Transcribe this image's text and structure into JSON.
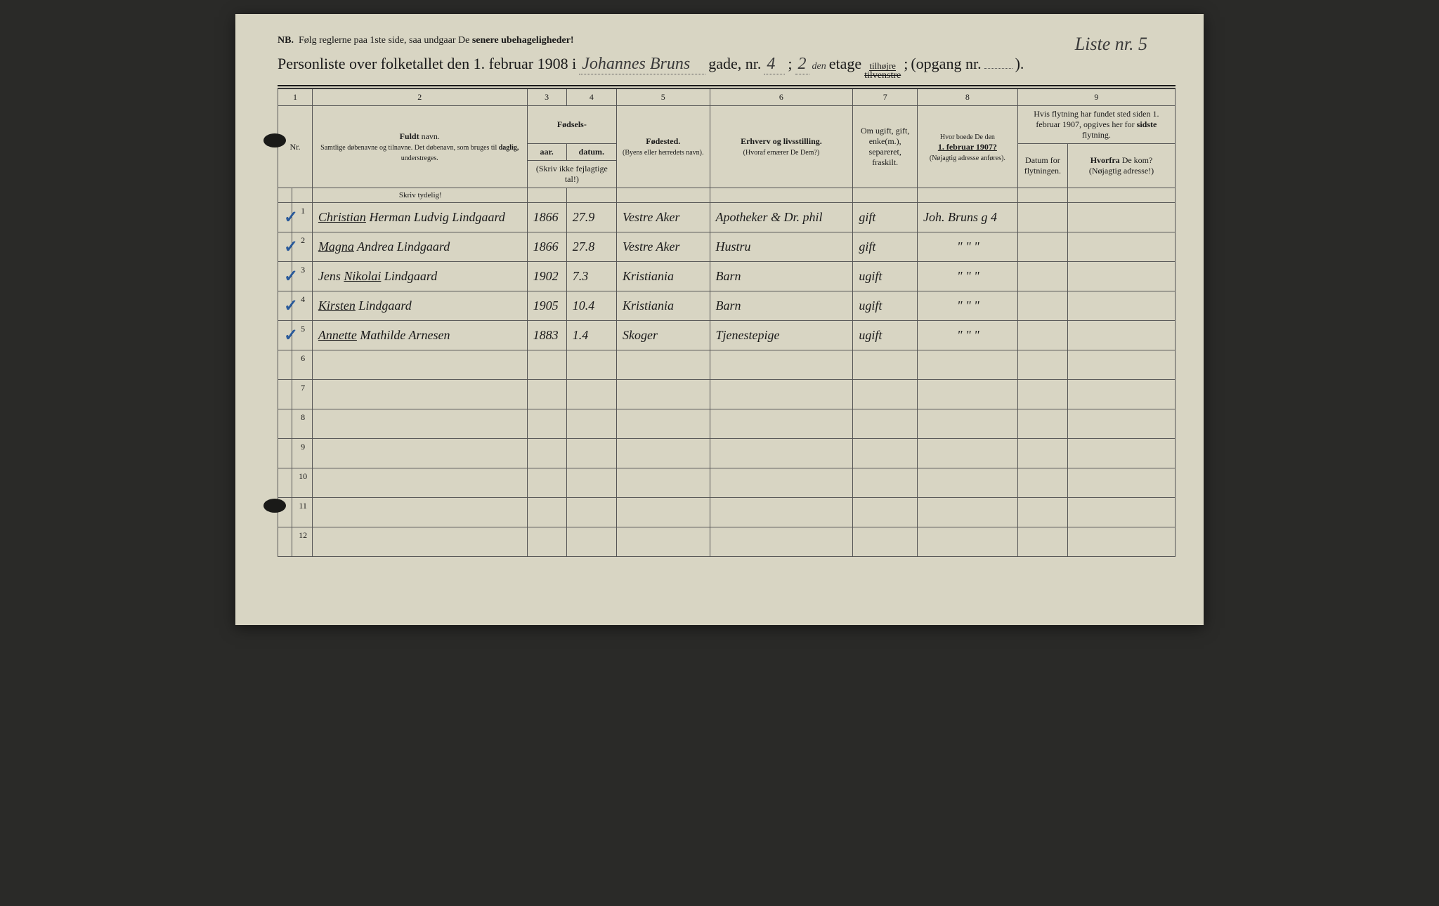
{
  "header": {
    "nb_prefix": "NB.",
    "nb_text": "Følg reglerne paa 1ste side, saa undgaar De",
    "nb_bold": "senere ubehageligheder!",
    "liste_label": "Liste nr.",
    "liste_value": "5"
  },
  "title": {
    "prefix": "Personliste over folketallet den 1. februar 1908 i",
    "street": "Johannes Bruns",
    "gade_label": "gade, nr.",
    "house_nr": "4",
    "semicolon": ";",
    "floor": "2",
    "floor_suffix": "den",
    "etage": "etage",
    "tilhojre": "tilhøjre",
    "tilvenstre": "tilvenstre",
    "opgang_label": "(opgang nr.",
    "opgang_value": "",
    "closing": ")."
  },
  "columns": {
    "numbers": [
      "1",
      "2",
      "3",
      "4",
      "5",
      "6",
      "7",
      "8",
      "9"
    ],
    "nr_label": "Nr.",
    "name_label": "Fuldt",
    "name_label2": "navn.",
    "name_sub": "Samtlige døbenavne og tilnavne. Det døbenavn, som bruges til",
    "name_sub_bold": "daglig,",
    "name_sub2": "understreges.",
    "fodsels": "Fødsels-",
    "aar": "aar.",
    "datum": "datum.",
    "skriv_ikke": "(Skriv ikke fejlagtige tal!)",
    "fodested": "Fødested.",
    "fodested_sub": "(Byens eller herredets navn).",
    "erhverv": "Erhverv og livsstilling.",
    "erhverv_sub": "(Hvoraf ernærer De Dem?)",
    "marital": "Om ugift, gift, enke(m.), separeret, fraskilt.",
    "prev_addr": "Hvor boede De den",
    "prev_addr_date": "1. februar 1907?",
    "prev_addr_sub": "(Nøjagtig adresse anføres).",
    "flytning": "Hvis flytning har fundet sted siden 1. februar 1907, opgives her for",
    "flytning_bold": "sidste",
    "flytning2": "flytning.",
    "datum_flyt": "Datum for flytningen.",
    "hvorfra": "Hvorfra",
    "hvorfra2": "De kom?",
    "hvorfra_sub": "(Nøjagtig adresse!)",
    "skriv_tydelig": "Skriv tydelig!"
  },
  "rows": [
    {
      "tick": "✓",
      "nr": "1",
      "name_underlined": "Christian",
      "name_rest": "Herman Ludvig Lindgaard",
      "year": "1866",
      "date": "27.9",
      "place": "Vestre Aker",
      "occupation": "Apotheker & Dr. phil",
      "marital": "gift",
      "prev": "Joh. Bruns g 4",
      "move_date": "",
      "move_from": ""
    },
    {
      "tick": "✓",
      "nr": "2",
      "name_underlined": "Magna",
      "name_rest": "Andrea Lindgaard",
      "year": "1866",
      "date": "27.8",
      "place": "Vestre Aker",
      "occupation": "Hustru",
      "marital": "gift",
      "prev": "\"     \"     \"",
      "move_date": "",
      "move_from": ""
    },
    {
      "tick": "✓",
      "nr": "3",
      "name_underlined": "",
      "name_rest_pre": "Jens ",
      "name_mid_underlined": "Nikolai",
      "name_rest": " Lindgaard",
      "year": "1902",
      "date": "7.3",
      "place": "Kristiania",
      "occupation": "Barn",
      "marital": "ugift",
      "prev": "\"     \"     \"",
      "move_date": "",
      "move_from": ""
    },
    {
      "tick": "✓",
      "nr": "4",
      "name_underlined": "Kirsten",
      "name_rest": "Lindgaard",
      "year": "1905",
      "date": "10.4",
      "place": "Kristiania",
      "occupation": "Barn",
      "marital": "ugift",
      "prev": "\"     \"     \"",
      "move_date": "",
      "move_from": ""
    },
    {
      "tick": "✓",
      "nr": "5",
      "name_underlined": "Annette",
      "name_rest": "Mathilde Arnesen",
      "year": "1883",
      "date": "1.4",
      "place": "Skoger",
      "occupation": "Tjenestepige",
      "marital": "ugift",
      "prev": "\"     \"     \"",
      "move_date": "",
      "move_from": ""
    },
    {
      "tick": "",
      "nr": "6",
      "name_underlined": "",
      "name_rest": "",
      "year": "",
      "date": "",
      "place": "",
      "occupation": "",
      "marital": "",
      "prev": "",
      "move_date": "",
      "move_from": ""
    },
    {
      "tick": "",
      "nr": "7",
      "name_underlined": "",
      "name_rest": "",
      "year": "",
      "date": "",
      "place": "",
      "occupation": "",
      "marital": "",
      "prev": "",
      "move_date": "",
      "move_from": ""
    },
    {
      "tick": "",
      "nr": "8",
      "name_underlined": "",
      "name_rest": "",
      "year": "",
      "date": "",
      "place": "",
      "occupation": "",
      "marital": "",
      "prev": "",
      "move_date": "",
      "move_from": ""
    },
    {
      "tick": "",
      "nr": "9",
      "name_underlined": "",
      "name_rest": "",
      "year": "",
      "date": "",
      "place": "",
      "occupation": "",
      "marital": "",
      "prev": "",
      "move_date": "",
      "move_from": ""
    },
    {
      "tick": "",
      "nr": "10",
      "name_underlined": "",
      "name_rest": "",
      "year": "",
      "date": "",
      "place": "",
      "occupation": "",
      "marital": "",
      "prev": "",
      "move_date": "",
      "move_from": ""
    },
    {
      "tick": "",
      "nr": "11",
      "name_underlined": "",
      "name_rest": "",
      "year": "",
      "date": "",
      "place": "",
      "occupation": "",
      "marital": "",
      "prev": "",
      "move_date": "",
      "move_from": ""
    },
    {
      "tick": "",
      "nr": "12",
      "name_underlined": "",
      "name_rest": "",
      "year": "",
      "date": "",
      "place": "",
      "occupation": "",
      "marital": "",
      "prev": "",
      "move_date": "",
      "move_from": ""
    }
  ],
  "colors": {
    "paper": "#d8d5c3",
    "ink": "#1a1a1a",
    "blue_tick": "#2a5a9a",
    "handwriting": "#3a3a3a"
  }
}
